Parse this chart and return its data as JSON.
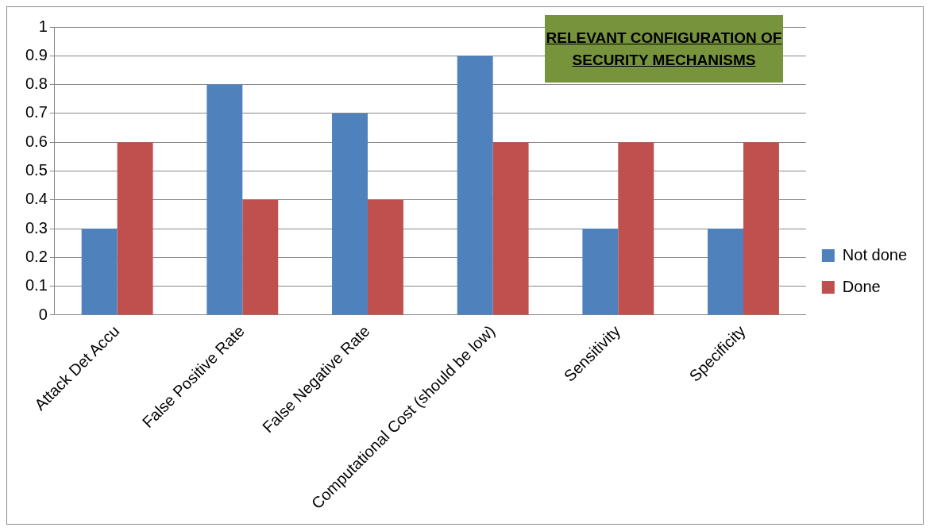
{
  "chart_data": {
    "type": "bar",
    "title": "RELEVANT CONFIGURATION OF SECURITY MECHANISMS",
    "categories": [
      "Attack Det Accu",
      "False Positive Rate",
      "False Negative Rate",
      "Computational Cost (should be low)",
      "Sensitivity",
      "Specificity"
    ],
    "series": [
      {
        "name": "Not done",
        "color": "#4f81bd",
        "values": [
          0.3,
          0.8,
          0.7,
          0.9,
          0.3,
          0.3
        ]
      },
      {
        "name": "Done",
        "color": "#c0504d",
        "values": [
          0.6,
          0.4,
          0.4,
          0.6,
          0.6,
          0.6
        ]
      }
    ],
    "ylim": [
      0,
      1
    ],
    "yticks": [
      0,
      0.1,
      0.2,
      0.3,
      0.4,
      0.5,
      0.6,
      0.7,
      0.8,
      0.9,
      1
    ],
    "grid": "y",
    "legend": "right"
  }
}
